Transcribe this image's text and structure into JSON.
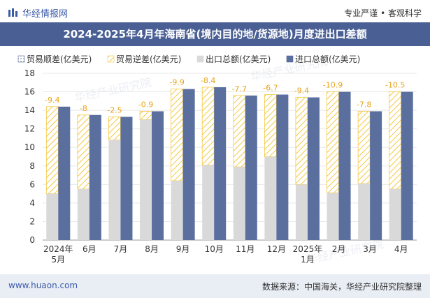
{
  "header": {
    "brand": "华经情报网",
    "tagline": "专业严谨 • 客观科学"
  },
  "footer": {
    "website": "www.huaon.com",
    "source": "数据来源：中国海关，华经产业研究院整理"
  },
  "watermark": "华经产业研究院",
  "colors": {
    "title_bg": "#4a5f94",
    "export": "#d9d9d9",
    "import": "#5b6f9e",
    "deficit": "#f5c842",
    "label": "#e8a41c"
  },
  "chart_data": {
    "type": "bar",
    "title": "2024-2025年4月年海南省(境内目的地/货源地)月度进出口差额",
    "categories": [
      "2024年\n5月",
      "6月",
      "7月",
      "8月",
      "9月",
      "10月",
      "11月",
      "12月",
      "2025年\n1月",
      "2月",
      "3月",
      "4月"
    ],
    "series": [
      {
        "name": "贸易顺差(亿美元)",
        "values": [
          0,
          0,
          0,
          0,
          0,
          0,
          0,
          0,
          0,
          0,
          0,
          0
        ]
      },
      {
        "name": "贸易逆差(亿美元)",
        "values": [
          -9.4,
          -8,
          -2.5,
          -0.9,
          -9.9,
          -8.4,
          -7.7,
          -6.7,
          -9.4,
          -10.9,
          -7.8,
          -10.5
        ]
      },
      {
        "name": "出口总额(亿美元)",
        "values": [
          5.0,
          5.5,
          10.8,
          13.0,
          6.4,
          8.1,
          7.9,
          9.0,
          6.0,
          5.1,
          6.1,
          5.5
        ]
      },
      {
        "name": "进口总额(亿美元)",
        "values": [
          14.4,
          13.5,
          13.3,
          13.9,
          16.3,
          16.5,
          15.6,
          15.7,
          15.4,
          16.0,
          13.9,
          16.0
        ]
      }
    ],
    "ylim": [
      0,
      18
    ],
    "yticks": [
      0,
      2,
      4,
      6,
      8,
      10,
      12,
      14,
      16,
      18
    ],
    "legend": "top-left"
  }
}
